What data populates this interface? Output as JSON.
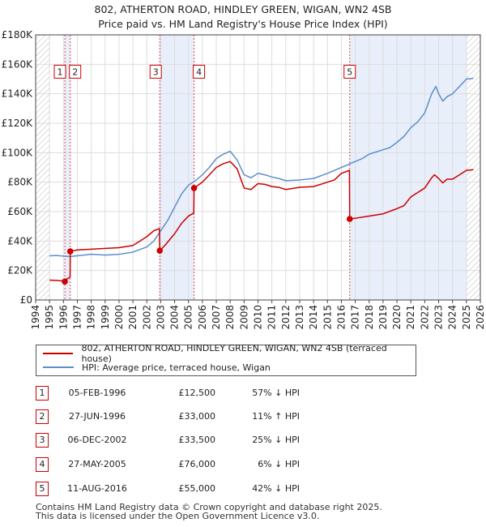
{
  "chart_data": {
    "type": "line",
    "title": "802, ATHERTON ROAD, HINDLEY GREEN, WIGAN, WN2 4SB",
    "subtitle": "Price paid vs. HM Land Registry's House Price Index (HPI)",
    "xlim": [
      1994,
      2026
    ],
    "ylim": [
      0,
      180000
    ],
    "x_ticks": [
      "1994",
      "1995",
      "1996",
      "1997",
      "1998",
      "1999",
      "2000",
      "2001",
      "2002",
      "2003",
      "2004",
      "2005",
      "2006",
      "2007",
      "2008",
      "2009",
      "2010",
      "2011",
      "2012",
      "2013",
      "2014",
      "2015",
      "2016",
      "2017",
      "2018",
      "2019",
      "2020",
      "2021",
      "2022",
      "2023",
      "2024",
      "2025",
      "2026"
    ],
    "y_ticks": [
      {
        "value": 0,
        "label": "£0"
      },
      {
        "value": 20000,
        "label": "£20K"
      },
      {
        "value": 40000,
        "label": "£40K"
      },
      {
        "value": 60000,
        "label": "£60K"
      },
      {
        "value": 80000,
        "label": "£80K"
      },
      {
        "value": 100000,
        "label": "£100K"
      },
      {
        "value": 120000,
        "label": "£120K"
      },
      {
        "value": 140000,
        "label": "£140K"
      },
      {
        "value": 160000,
        "label": "£160K"
      },
      {
        "value": 180000,
        "label": "£180K"
      }
    ],
    "series": [
      {
        "name": "802, ATHERTON ROAD, HINDLEY GREEN, WIGAN, WN2 4SB (terraced house)",
        "color": "#cc0000",
        "points": [
          [
            1995.0,
            13500
          ],
          [
            1995.5,
            13300
          ],
          [
            1996.0,
            12900
          ],
          [
            1996.1,
            12500
          ],
          [
            1996.2,
            14000
          ],
          [
            1996.48,
            15500
          ],
          [
            1996.49,
            33000
          ],
          [
            1997.0,
            34000
          ],
          [
            1998.0,
            34500
          ],
          [
            1999.0,
            35000
          ],
          [
            2000.0,
            35500
          ],
          [
            2001.0,
            37000
          ],
          [
            2001.5,
            40000
          ],
          [
            2002.0,
            43000
          ],
          [
            2002.5,
            47000
          ],
          [
            2002.9,
            48500
          ],
          [
            2002.93,
            33500
          ],
          [
            2003.3,
            37000
          ],
          [
            2004.0,
            45000
          ],
          [
            2004.5,
            52000
          ],
          [
            2005.0,
            57000
          ],
          [
            2005.38,
            59000
          ],
          [
            2005.4,
            76000
          ],
          [
            2006.0,
            80000
          ],
          [
            2006.5,
            85000
          ],
          [
            2007.0,
            90000
          ],
          [
            2007.5,
            92500
          ],
          [
            2008.0,
            94000
          ],
          [
            2008.5,
            89000
          ],
          [
            2009.0,
            76000
          ],
          [
            2009.5,
            75000
          ],
          [
            2010.0,
            79000
          ],
          [
            2010.5,
            78500
          ],
          [
            2011.0,
            77000
          ],
          [
            2011.5,
            76500
          ],
          [
            2012.0,
            75000
          ],
          [
            2013.0,
            76500
          ],
          [
            2014.0,
            77000
          ],
          [
            2015.0,
            80000
          ],
          [
            2015.5,
            81500
          ],
          [
            2016.0,
            86000
          ],
          [
            2016.58,
            88000
          ],
          [
            2016.6,
            55000
          ],
          [
            2017.0,
            55500
          ],
          [
            2018.0,
            57000
          ],
          [
            2019.0,
            58500
          ],
          [
            2020.0,
            62000
          ],
          [
            2020.5,
            64000
          ],
          [
            2021.0,
            70000
          ],
          [
            2021.5,
            73000
          ],
          [
            2022.0,
            76000
          ],
          [
            2022.5,
            83000
          ],
          [
            2022.7,
            85000
          ],
          [
            2023.0,
            82500
          ],
          [
            2023.3,
            79500
          ],
          [
            2023.6,
            82000
          ],
          [
            2024.0,
            82000
          ],
          [
            2024.5,
            85000
          ],
          [
            2025.0,
            88000
          ],
          [
            2025.5,
            88500
          ]
        ]
      },
      {
        "name": "HPI: Average price, terraced house, Wigan",
        "color": "#5b8fcc",
        "points": [
          [
            1995.0,
            30000
          ],
          [
            1995.5,
            30200
          ],
          [
            1996.0,
            29800
          ],
          [
            1996.5,
            29500
          ],
          [
            1997.0,
            30000
          ],
          [
            1998.0,
            31000
          ],
          [
            1999.0,
            30500
          ],
          [
            2000.0,
            31000
          ],
          [
            2001.0,
            32500
          ],
          [
            2002.0,
            36000
          ],
          [
            2002.5,
            40000
          ],
          [
            2003.0,
            47000
          ],
          [
            2003.5,
            54000
          ],
          [
            2004.0,
            63000
          ],
          [
            2004.5,
            72000
          ],
          [
            2005.0,
            78000
          ],
          [
            2005.5,
            81000
          ],
          [
            2006.0,
            85000
          ],
          [
            2006.5,
            90000
          ],
          [
            2007.0,
            96000
          ],
          [
            2007.5,
            99000
          ],
          [
            2008.0,
            101000
          ],
          [
            2008.5,
            95000
          ],
          [
            2009.0,
            85000
          ],
          [
            2009.5,
            83000
          ],
          [
            2010.0,
            86000
          ],
          [
            2010.5,
            85000
          ],
          [
            2011.0,
            83500
          ],
          [
            2011.5,
            82500
          ],
          [
            2012.0,
            81000
          ],
          [
            2013.0,
            81500
          ],
          [
            2014.0,
            82500
          ],
          [
            2015.0,
            86000
          ],
          [
            2015.5,
            88000
          ],
          [
            2016.0,
            90000
          ],
          [
            2016.5,
            92000
          ],
          [
            2017.0,
            94000
          ],
          [
            2017.5,
            96000
          ],
          [
            2018.0,
            99000
          ],
          [
            2019.0,
            102000
          ],
          [
            2019.5,
            103500
          ],
          [
            2020.0,
            107000
          ],
          [
            2020.5,
            111000
          ],
          [
            2021.0,
            117000
          ],
          [
            2021.5,
            121000
          ],
          [
            2022.0,
            127000
          ],
          [
            2022.5,
            140000
          ],
          [
            2022.8,
            145000
          ],
          [
            2023.0,
            140000
          ],
          [
            2023.3,
            135000
          ],
          [
            2023.6,
            138000
          ],
          [
            2024.0,
            140000
          ],
          [
            2024.5,
            145000
          ],
          [
            2025.0,
            150000
          ],
          [
            2025.5,
            150500
          ]
        ]
      }
    ],
    "sales": [
      {
        "label": "1",
        "x": 1996.1,
        "price": 12500,
        "label_y": 155000
      },
      {
        "label": "2",
        "x": 1996.49,
        "price": 33000,
        "label_y": 155000
      },
      {
        "label": "3",
        "x": 2002.93,
        "price": 33500,
        "label_y": 155000
      },
      {
        "label": "4",
        "x": 2005.4,
        "price": 76000,
        "label_y": 155000
      },
      {
        "label": "5",
        "x": 2016.6,
        "price": 55000,
        "label_y": 155000
      }
    ],
    "shaded_spans": [
      [
        1996.1,
        1996.49
      ],
      [
        2002.93,
        2005.4
      ],
      [
        2016.6,
        2025.0
      ]
    ],
    "hatch_regions": [
      [
        1994,
        1995.0
      ],
      [
        2025.0,
        2026
      ]
    ]
  },
  "legend": {
    "property_label": "802, ATHERTON ROAD, HINDLEY GREEN, WIGAN, WN2 4SB (terraced house)",
    "hpi_label": "HPI: Average price, terraced house, Wigan",
    "property_color": "#cc0000",
    "hpi_color": "#5b8fcc"
  },
  "transactions": [
    {
      "num": "1",
      "date": "05-FEB-1996",
      "price": "£12,500",
      "hpi": "57% ↓ HPI"
    },
    {
      "num": "2",
      "date": "27-JUN-1996",
      "price": "£33,000",
      "hpi": "11% ↑ HPI"
    },
    {
      "num": "3",
      "date": "06-DEC-2002",
      "price": "£33,500",
      "hpi": "25% ↓ HPI"
    },
    {
      "num": "4",
      "date": "27-MAY-2005",
      "price": "£76,000",
      "hpi": "6% ↓ HPI"
    },
    {
      "num": "5",
      "date": "11-AUG-2016",
      "price": "£55,000",
      "hpi": "42% ↓ HPI"
    }
  ],
  "footer": {
    "line1": "Contains HM Land Registry data © Crown copyright and database right 2025.",
    "line2": "This data is licensed under the Open Government Licence v3.0."
  }
}
